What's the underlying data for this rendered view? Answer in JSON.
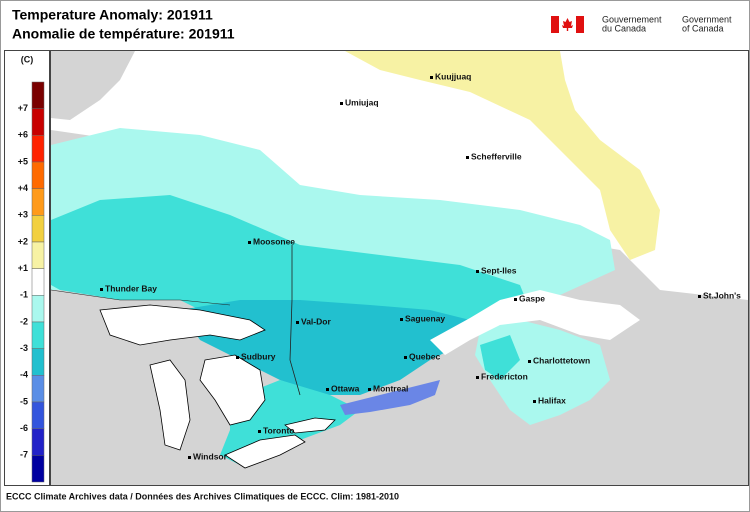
{
  "header": {
    "title_en": "Temperature Anomaly: 201911",
    "title_fr": "Anomalie de température: 201911"
  },
  "government": {
    "fr": [
      "Gouvernement",
      "du Canada"
    ],
    "en": [
      "Government",
      "of Canada"
    ]
  },
  "legend": {
    "unit": "(C)",
    "labels": [
      "+7",
      "+6",
      "+5",
      "+4",
      "+3",
      "+2",
      "+1",
      "-1",
      "-2",
      "-3",
      "-4",
      "-5",
      "-6",
      "-7"
    ]
  },
  "cities": [
    "Kuujjuaq",
    "Umiujaq",
    "Schefferville",
    "Moosonee",
    "Sept-Iles",
    "Thunder Bay",
    "Gaspe",
    "Saguenay",
    "Val-Dor",
    "Sudbury",
    "Quebec",
    "Charlottetown",
    "Fredericton",
    "Ottawa",
    "Montreal",
    "Halifax",
    "St.John's",
    "Toronto",
    "Windsor"
  ],
  "footer": "ECCC Climate Archives data / Données des Archives Climatiques de ECCC. Clim: 1981-2010"
}
